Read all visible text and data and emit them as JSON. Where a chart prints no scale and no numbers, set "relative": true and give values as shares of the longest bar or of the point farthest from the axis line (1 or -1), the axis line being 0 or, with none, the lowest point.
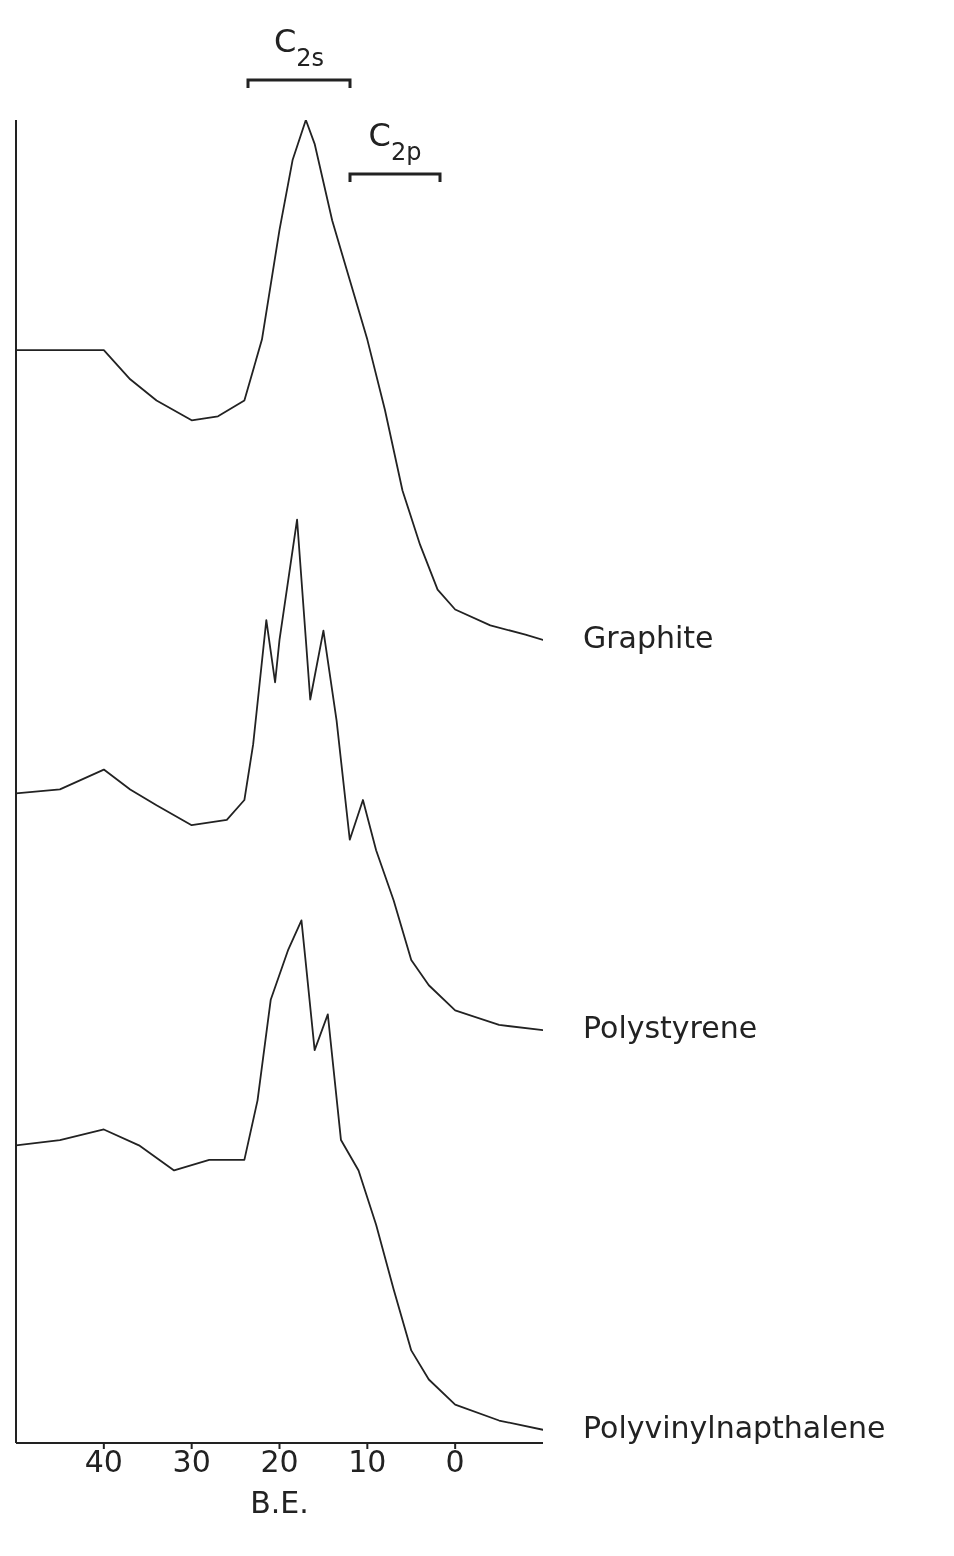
{
  "chart_data": {
    "type": "line",
    "relative": true,
    "xlabel": "B.E.",
    "xlim": [
      50,
      -10
    ],
    "xticks": [
      40,
      30,
      20,
      10,
      0
    ],
    "legend": false,
    "grid": false,
    "marker": "none",
    "line_style": "solid",
    "annotations": [
      "C$_{2s}$",
      "C$_{2p}$"
    ],
    "series": [
      {
        "name": "Graphite",
        "color": "#222222",
        "x": [
          50,
          45,
          40,
          37,
          34,
          30,
          27,
          24,
          22,
          20,
          18.5,
          17,
          16,
          14,
          12,
          10,
          8,
          6,
          4,
          2,
          0,
          -4,
          -8,
          -10
        ],
        "values": [
          0.826,
          0.826,
          0.826,
          0.804,
          0.788,
          0.773,
          0.776,
          0.788,
          0.834,
          0.917,
          0.97,
          1,
          0.982,
          0.924,
          0.879,
          0.834,
          0.781,
          0.72,
          0.679,
          0.645,
          0.63,
          0.618,
          0.611,
          0.607
        ]
      },
      {
        "name": "Polystyrene",
        "color": "#222222",
        "x": [
          50,
          45,
          40,
          37,
          34,
          30,
          26,
          24,
          23,
          21.5,
          20.5,
          20,
          18,
          16.5,
          15,
          13.5,
          12,
          10.5,
          9,
          7,
          5,
          3,
          0,
          -5,
          -10
        ],
        "values": [
          0.491,
          0.494,
          0.509,
          0.494,
          0.482,
          0.467,
          0.471,
          0.486,
          0.528,
          0.622,
          0.575,
          0.607,
          0.698,
          0.562,
          0.614,
          0.546,
          0.456,
          0.486,
          0.448,
          0.41,
          0.365,
          0.346,
          0.327,
          0.316,
          0.312
        ]
      },
      {
        "name": "Polyvinylnapthalene",
        "color": "#222222",
        "x": [
          50,
          45,
          40,
          36,
          32,
          28,
          24,
          22.5,
          21,
          19,
          17.5,
          16,
          14.5,
          13,
          11,
          9,
          7,
          5,
          3,
          0,
          -5,
          -10
        ],
        "values": [
          0.225,
          0.229,
          0.237,
          0.225,
          0.206,
          0.214,
          0.214,
          0.259,
          0.335,
          0.373,
          0.395,
          0.297,
          0.324,
          0.229,
          0.206,
          0.165,
          0.116,
          0.07,
          0.048,
          0.029,
          0.017,
          0.01
        ]
      }
    ]
  }
}
